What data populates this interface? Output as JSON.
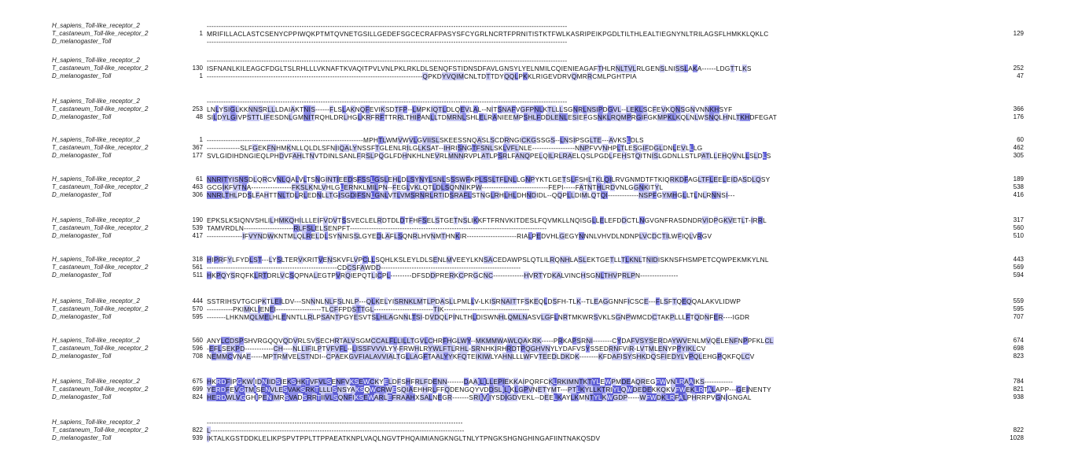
{
  "alignment": {
    "shading_colors": {
      "low": "#c9c9f4",
      "mid": "#8f8fe9",
      "high": "#5f5fd6"
    },
    "sequence_names": [
      "H_sapiens_Toll-like_receptor_2",
      "T_castaneum_Toll-like_receptor_2",
      "D_melanogaster_Toll"
    ],
    "blocks": [
      {
        "rows": [
          {
            "name": "H_sapiens_Toll-like_receptor_2",
            "start": "",
            "seq": "--------------------------------------------------------------------------------------------------------------------------------------------------------",
            "end": ""
          },
          {
            "name": "T_castaneum_Toll-like_receptor_2",
            "start": "1",
            "seq": "MRIFILLACLASTCSENYCPPIWQKPTMTQVNETGSILLGEDEFSGCECRAFPASYSFCYGRLNCRTFPRNITISTKTFWLKASRIPEIKPGDLTILTHLEALTIEGNYNLTRILAGSFLHMKKLQKLC",
            "end": "129"
          },
          {
            "name": "D_melanogaster_Toll",
            "start": "",
            "seq": "--------------------------------------------------------------------------------------------------------------------------------------------------------",
            "end": ""
          }
        ]
      },
      {
        "rows": [
          {
            "name": "H_sapiens_Toll-like_receptor_2",
            "start": "",
            "seq": "--------------------------------------------------------------------------------------------------------------------------------------------------------",
            "end": ""
          },
          {
            "name": "T_castaneum_Toll-like_receptor_2",
            "start": "130",
            "seq": "ISFNANLKILEAGCFDGLTSLRHLLLVKNAFTKVAQITPVLVNLPKLRKLDLSENQFSTIDNSDFAVLGNSYLYELNMILCQIENIEAGAFTHLRNLTVLRLGENSLNISSLAKA------LDGTTLKS",
            "end": "252"
          },
          {
            "name": "D_melanogaster_Toll",
            "start": "1",
            "seq": "-------------------------------------------------------------------------------------------QPKDYVQIMCNLTDTTDYQQLPKKLRIGEVDRVQMRRCMLPGHTPIA",
            "end": "47"
          }
        ]
      },
      {
        "rows": [
          {
            "name": "H_sapiens_Toll-like_receptor_2",
            "start": "",
            "seq": "--------------------------------------------------------------------------------------------------------------------------------------------------------",
            "end": ""
          },
          {
            "name": "T_castaneum_Toll-like_receptor_2",
            "start": "253",
            "seq": "LNLYSIGLKKNNSRLLLDAIAKTNIS------FLSLAKNQFEVIKSDTFP--LMPKIQTLDLQEVLAL--NITSNAFVGFPNLKTLLLSGNRLNSIPDGVL--LEKLSCFEVKQNSGNVNNKHSYF",
            "end": "366"
          },
          {
            "name": "D_melanogaster_Toll",
            "start": "48",
            "seq": "SILDYLGIVPSTTLIFESDNLGMNITRQHLDRLHGLKRFRFTTRRLTHIPANLLTDMRNLSHLELRANIEEMPSHLFDDLENLESIEFGSNKLRQMPRGIFGKMPKLKQLNLWSNQLHNLTKHDFEGAT",
            "end": "176"
          }
        ]
      },
      {
        "rows": [
          {
            "name": "H_sapiens_Toll-like_receptor_2",
            "start": "1",
            "seq": "------------------------------------------------------------------MPHTLWMVWVLGVIISLSKEESSNQASLSCDRNGICKGSSGS--LNSIPSGLTE---AVKSLDLS",
            "end": "60"
          },
          {
            "name": "T_castaneum_Toll-like_receptor_2",
            "start": "367",
            "seq": "--------------SLFGEKFNHMKNLLQLDLSFNIIQALYNSSFTGLENLRILGLKSAT--IHRISNGTFSNLSKLVFLNLE------------------NNPFVVNHPLTLESGIFDGLDNLEVLLLG",
            "end": "462"
          },
          {
            "name": "D_melanogaster_Toll",
            "start": "177",
            "seq": "SVLGIDIHDNGIEQLPHDVFAHLTNVTDINLSANLFRSLPQGLFDHNKHLNEVRLMNNRVPLATLPSRLFANQPELQILRLRAELQSLPGDLFEHSTQITNISLGDNLLSTLPATLLEHQVNLLSLDLS",
            "end": "305"
          }
        ]
      },
      {
        "rows": [
          {
            "name": "H_sapiens_Toll-like_receptor_2",
            "start": "61",
            "seq": "NNRITYISNSDLQRCVNLQALVLTSNGINTIEEDSFSSLGSLEHLDLSYNYLSNLSSSWFKPLSSLTFLNLLGNPYKTLGETSLFSHLTKLQILRVGNMDTFTKIQRKDFAGLTFLEELEIDASDLQSY",
            "end": "189"
          },
          {
            "name": "T_castaneum_Toll-like_receptor_2",
            "start": "463",
            "seq": "GCGIKFVTNA-----------------FKSLKNLVHLGLERNKLMILPN--FEGLVKLQTLDLSQNNIKPW----------------------------FEPI-----FATNTHLRDVNLGGNKITYL",
            "end": "538"
          },
          {
            "name": "D_melanogaster_Toll",
            "start": "306",
            "seq": "NNRLTHLPDSLFAHTTNLTDLRLEDNLLTGISGDIFSNLGNLVTLVMSRNRLRTIDSRAFLSTNGLRHLHLDHNDIDL--QQPLLDIMLQTQI-------------NSPFGYMHGLLTLNLRNNSI---",
            "end": "416"
          }
        ]
      },
      {
        "rows": [
          {
            "name": "H_sapiens_Toll-like_receptor_2",
            "start": "190",
            "seq": "EPKSLKSIQNVSHLILHMKQHILLLEIFVDVTSSVECLELRDTDLDTFHFSELSTGETNSLIKKFTFRNVKITDESLFQVMKLLNQISGLLELEFDDCTLNGVGNFRASDNDRVIDPGKVETLT-IRRL",
            "end": "317"
          },
          {
            "name": "T_castaneum_Toll-like_receptor_2",
            "start": "539",
            "seq": "TAMVRDLN---------------------RLFSLELSENPFT-----------------------------------------------------------------------------------",
            "end": "560"
          },
          {
            "name": "D_melanogaster_Toll",
            "start": "417",
            "seq": "---------------IFVYNDWKNTMLQLRELDLSYNNISSLGYEDLAFLSQNRLHVNMTHNKIR---------------------RIALPEDVHLGEGYNNNLVHVDLNDNPLVCDCTILWFIQLVRGV",
            "end": "510"
          }
        ]
      },
      {
        "rows": [
          {
            "name": "H_sapiens_Toll-like_receptor_2",
            "start": "318",
            "seq": "HIPRFYLFYDLST---LYSLTERVKRITVENSKVFLVPCLLSQHLKSLEYLDLSENLMVEEYLKNSACEDAWPSLQTLILRQNHLASLEKTGETLLTLKNLTNIDISKNSFHSMPETCQWPEKMKYLNL",
            "end": "443"
          },
          {
            "name": "T_castaneum_Toll-like_receptor_2",
            "start": "561",
            "seq": "-------------------------------------------------------CDCSFAWDD-----------------------------------------------------------",
            "end": "569"
          },
          {
            "name": "D_melanogaster_Toll",
            "start": "511",
            "seq": "HKPQYSRQFKLRTDRLVCSQPNALEGTPVRQIEPQTLICPL---------DFSDDPRERKCPRGCNC-------------HVRTYDKALVINCHSGNLTHVPRLPN----------------",
            "end": "594"
          }
        ]
      },
      {
        "rows": [
          {
            "name": "H_sapiens_Toll-like_receptor_2",
            "start": "444",
            "seq": "SSTRIHSVTGCIPKTLEILDV---SNNNLNLFSLNLP---QLKELYISRNKLMTLPDASLLPMLLV-LKISRNAITTFSKEQLDSFH-TLK--TLEAGGNNFICSCE---FLSFTQEQQALAKVLIDWP",
            "end": "559"
          },
          {
            "name": "T_castaneum_Toll-like_receptor_2",
            "start": "570",
            "seq": "-----------PKIMKLIENEI-------------------TLCFFPDSTTGL-------------------------TIK------------------------------------",
            "end": "595"
          },
          {
            "name": "D_melanogaster_Toll",
            "start": "595",
            "seq": "--------LHKNMQLMELHLENNTLLRLPSANTPGYESVTSLHLAGNNLTSI-DVDQLPINLTHLDISWNHLQMLNASVLGFLNRTMKWRSVKLSGNPWMCDCTAKPLLLFTQDNFER----IGDR",
            "end": "707"
          }
        ]
      },
      {
        "rows": [
          {
            "name": "H_sapiens_Toll-like_receptor_2",
            "start": "560",
            "seq": "ANYLCDSPSHVRGQQVQDVRLSVSECHRTALVSGMCCALFLLILLTGVLCHRFHGLWY--MKMMWAWLQAKRK-----PRKAPSRNI--------CYDAFVSYSERDAYWVENLMVQELENFNPPFKLCL",
            "end": "674"
          },
          {
            "name": "T_castaneum_Toll-like_receptor_2",
            "start": "596",
            "seq": "-EFLSEKPD------------CH----NLLIFILPTVFVFL--LISSFVVVLYY-FRWHLRYWLFTLRHL-SRNHKIRHRDTPQGHVNYLYDAFVSYSSEDRNFVIR-LVTMLENYPPYIKLCV",
            "end": "698"
          },
          {
            "name": "D_melanogaster_Toll",
            "start": "708",
            "seq": "NEMMCVNAE-----MPTRMVELSTNDI--CPAEKGVFIALAVVIALTGLLAGFTAALYYKFQTEIKIWLYAHNLLLWFVTEEDLDKDK--------KFDAFISYSHKDQSFIEDYLVPQLEHGPQKFQLCV",
            "end": "823"
          }
        ]
      },
      {
        "rows": [
          {
            "name": "H_sapiens_Toll-like_receptor_2",
            "start": "675",
            "seq": "HKRDFIPGKWIIDNIIDSIEKSHKTVFVLSENFVKSEWCKYELDFSHFRLFDENN-------DAAILILLEPIEKKAIPQRFCKLRKIMNTKTYLEWPMDEAQREGFWVNLRAAIKS------------",
            "end": "784"
          },
          {
            "name": "T_castaneum_Toll-like_receptor_2",
            "start": "699",
            "seq": "YERDFEVGTMISENVLESVAKSRKTLLLISNSYAKSQWCRWESQIAEHHRLFFQDENGQYVDDSLILIKLGPVNETYMT---PTLKYLLKTRIYLQWDEDEKKQKVFWEKLRTALAPP---GEINENTY",
            "end": "821"
          },
          {
            "name": "D_melanogaster_Toll",
            "start": "824",
            "seq": "HERDWLVGGHIPENIMRSVADSRRTIIVLSQNFIKSEWARLEFRAAHXSALNEGR-------SRIIVIIYSDIGDVEKL--DEELKAYLKMNTYLKWGDP-----WFWDKLRFALPHRRPVGNIGNGAL",
            "end": "938"
          }
        ]
      },
      {
        "rows": [
          {
            "name": "H_sapiens_Toll-like_receptor_2",
            "start": "",
            "seq": "------------------------------------------------------------------------------------------------------------",
            "end": ""
          },
          {
            "name": "T_castaneum_Toll-like_receptor_2",
            "start": "822",
            "seq": "L-----------------------------------------------------------------------------------------------------------",
            "end": "822"
          },
          {
            "name": "D_melanogaster_Toll",
            "start": "939",
            "seq": "IKTALKGSTDDKLELIKPSPVTPPLTTPPAEATKNPLVAQLNGVTPHQAIMIANGKNGLTNLYTPNGKSHGNGHINGAFIINTNAKQSDV",
            "end": "1028"
          }
        ]
      }
    ]
  }
}
